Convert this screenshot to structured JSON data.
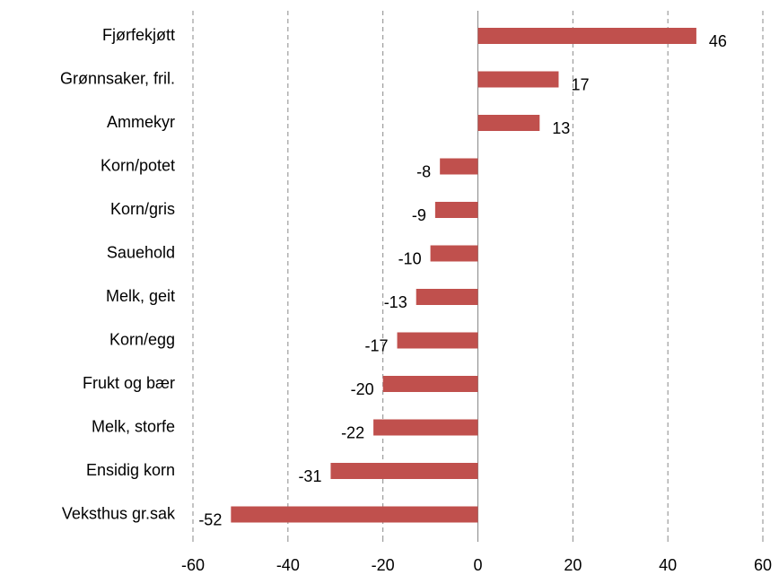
{
  "chart_data": {
    "type": "barh",
    "categories": [
      "Fjørfekjøtt",
      "Grønnsaker, fril.",
      "Ammekyr",
      "Korn/potet",
      "Korn/gris",
      "Sauehold",
      "Melk, geit",
      "Korn/egg",
      "Frukt og bær",
      "Melk, storfe",
      "Ensidig korn",
      "Veksthus gr.sak"
    ],
    "values": [
      46,
      17,
      13,
      -8,
      -9,
      -10,
      -13,
      -17,
      -20,
      -22,
      -31,
      -52
    ],
    "color": "#c0504d",
    "xlim": [
      -60,
      60
    ],
    "xticks": [
      -60,
      -40,
      -20,
      0,
      20,
      40,
      60
    ],
    "grid": true
  }
}
